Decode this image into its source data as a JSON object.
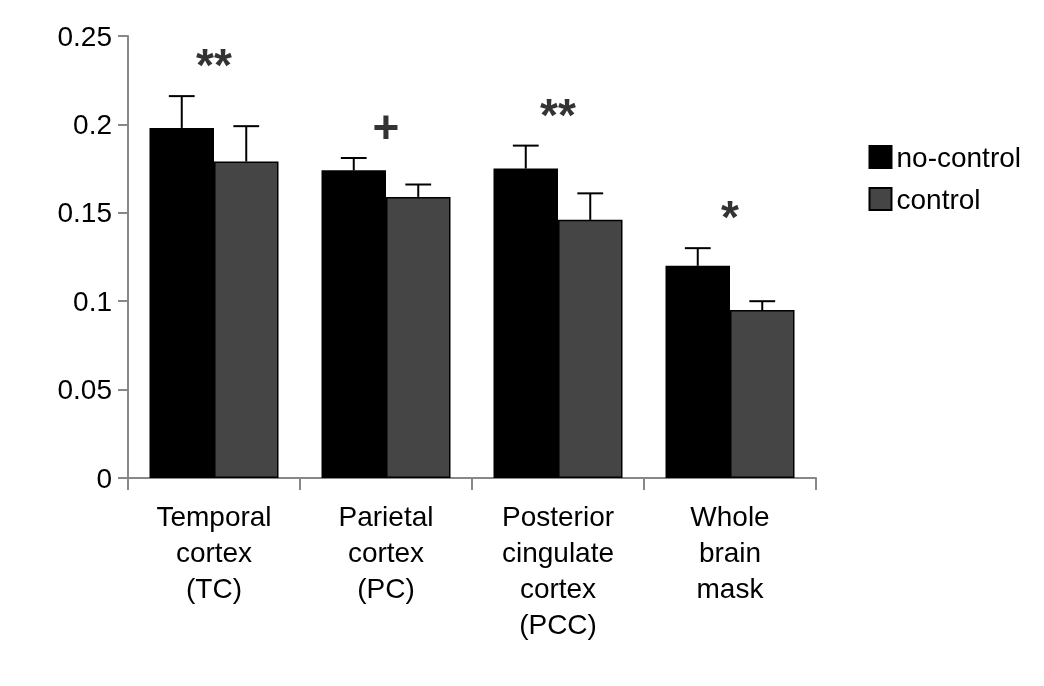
{
  "chart_data": {
    "type": "bar",
    "categories": [
      "Temporal\ncortex\n(TC)",
      "Parietal\ncortex\n(PC)",
      "Posterior\ncingulate\ncortex\n(PCC)",
      "Whole\nbrain\nmask"
    ],
    "series": [
      {
        "name": "no-control",
        "color": "#000000",
        "values": [
          0.198,
          0.174,
          0.175,
          0.12
        ],
        "errors": [
          [
            0.198,
            0.216
          ],
          [
            0.174,
            0.181
          ],
          [
            0.175,
            0.188
          ],
          [
            0.12,
            0.13
          ]
        ]
      },
      {
        "name": "control",
        "color": "#454545",
        "values": [
          0.179,
          0.159,
          0.146,
          0.095
        ],
        "errors": [
          [
            0.179,
            0.199
          ],
          [
            0.159,
            0.166
          ],
          [
            0.146,
            0.161
          ],
          [
            0.095,
            0.1
          ]
        ]
      }
    ],
    "annotations": [
      "**",
      "+",
      "**",
      "*"
    ],
    "ylim": [
      0,
      0.25
    ],
    "yticks": [
      0,
      0.05,
      0.1,
      0.15,
      0.2,
      0.25
    ],
    "grid": false,
    "legend": "right"
  }
}
